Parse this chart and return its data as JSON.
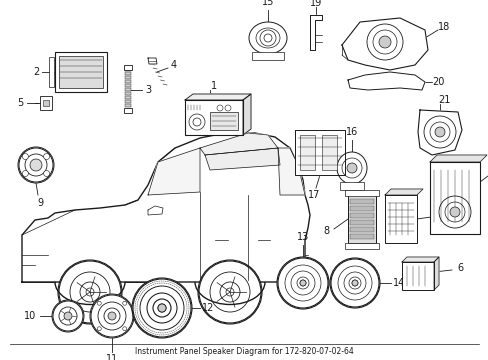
{
  "title": "Instrument Panel Speaker Diagram for 172-820-07-02-64",
  "bg": "#ffffff",
  "lc": "#1a1a1a",
  "figsize": [
    4.89,
    3.6
  ],
  "dpi": 100,
  "fs": 7.0
}
